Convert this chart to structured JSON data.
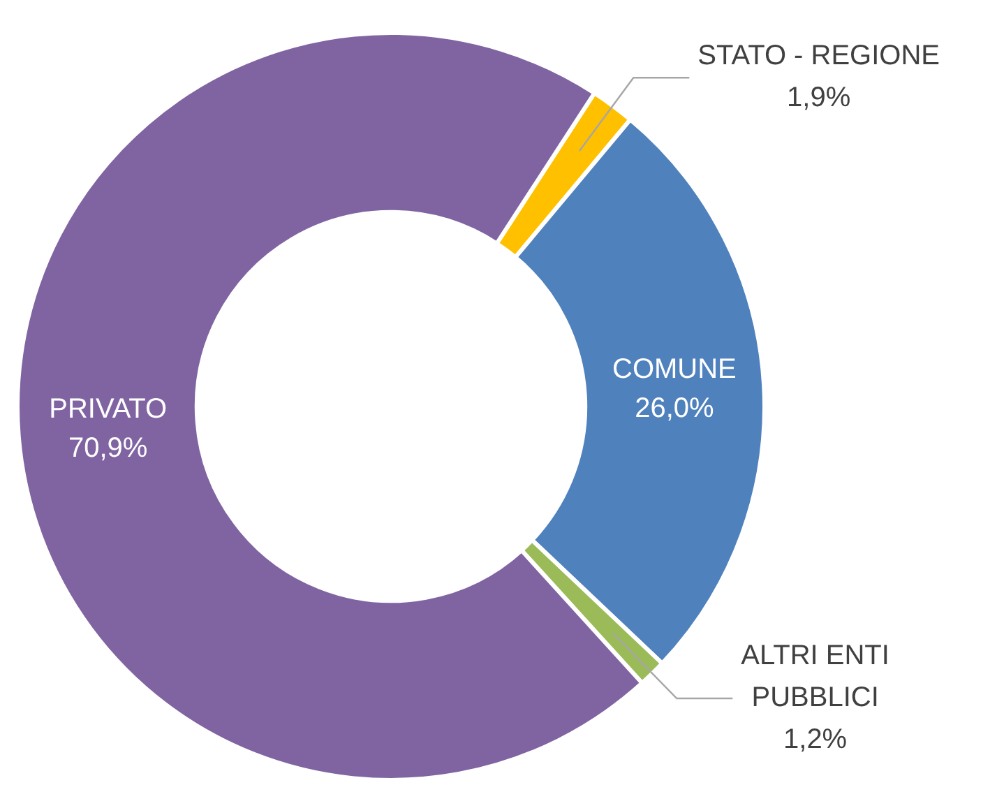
{
  "chart_data": {
    "type": "donut",
    "categories": [
      "STATO - REGIONE",
      "COMUNE",
      "ALTRI ENTI PUBBLICI",
      "PRIVATO"
    ],
    "values": [
      1.9,
      26.0,
      1.2,
      70.9
    ],
    "colors": [
      "#ffc000",
      "#4f81bd",
      "#9bbb59",
      "#8064a2"
    ],
    "value_labels": [
      "1,9%",
      "26,0%",
      "1,2%",
      "70,9%"
    ]
  }
}
